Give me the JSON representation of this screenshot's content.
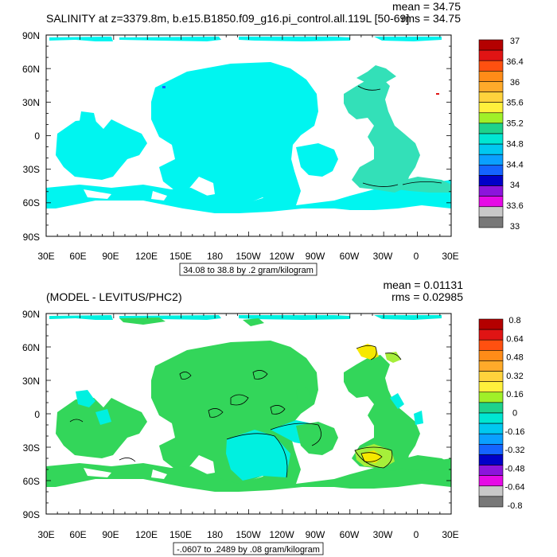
{
  "colors": {
    "ocean_top": "#00f5f0",
    "ocean_top_dark": "#00d8dc",
    "arctic_atlantic_top": "#33e0b8",
    "ocean_bottom": "#33d65a",
    "ocean_bottom_cyan": "#00f0e0",
    "atlantic_anomaly_yellow": "#f6e800",
    "atlantic_anomaly_lime": "#a6ef3a"
  },
  "panels": [
    {
      "title": "SALINITY at z=3379.8m, b.e15.B1850.f09_g16.pi_control.all.119L [50-69]",
      "mean_label": "mean = 34.75",
      "rms_label": "rms = 34.75",
      "lat_labels": [
        "90N",
        "60N",
        "30N",
        "0",
        "30S",
        "60S",
        "90S"
      ],
      "lon_labels": [
        "30E",
        "60E",
        "90E",
        "120E",
        "150E",
        "180",
        "150W",
        "120W",
        "90W",
        "60W",
        "30W",
        "0",
        "30E"
      ],
      "contour_info": "34.08 to 38.8 by .2 gram/kilogram",
      "colorbar_labels": [
        "37",
        "36.4",
        "36",
        "35.6",
        "35.2",
        "34.8",
        "34.4",
        "34",
        "33.6",
        "33"
      ],
      "colorbar_colors": [
        "#b40000",
        "#e01414",
        "#ff5010",
        "#ff8c18",
        "#ffaa2a",
        "#ffd23c",
        "#fff03c",
        "#a0f028",
        "#1ed28c",
        "#00e6d2",
        "#00c8f0",
        "#0aa0ff",
        "#1464ff",
        "#0000c8",
        "#8c14dc",
        "#e60ae6",
        "#c8c8c8",
        "#787878"
      ]
    },
    {
      "title": "(MODEL - LEVITUS/PHC2)",
      "mean_label": "mean = 0.01131",
      "rms_label": "rms = 0.02985",
      "lat_labels": [
        "90N",
        "60N",
        "30N",
        "0",
        "30S",
        "60S",
        "90S"
      ],
      "lon_labels": [
        "30E",
        "60E",
        "90E",
        "120E",
        "150E",
        "180",
        "150W",
        "120W",
        "90W",
        "60W",
        "30W",
        "0",
        "30E"
      ],
      "contour_info": "-.0607 to .2489 by .08 gram/kilogram",
      "colorbar_labels": [
        "0.8",
        "0.64",
        "0.48",
        "0.32",
        "0.16",
        "0",
        "-0.16",
        "-0.32",
        "-0.48",
        "-0.64",
        "-0.8"
      ],
      "colorbar_colors": [
        "#b40000",
        "#e01414",
        "#ff5010",
        "#ff8c18",
        "#ffaa2a",
        "#ffd23c",
        "#fff03c",
        "#a0f028",
        "#1ed28c",
        "#00e6d2",
        "#00c8f0",
        "#0aa0ff",
        "#1464ff",
        "#0000c8",
        "#8c14dc",
        "#e60ae6",
        "#c8c8c8",
        "#787878"
      ]
    }
  ]
}
